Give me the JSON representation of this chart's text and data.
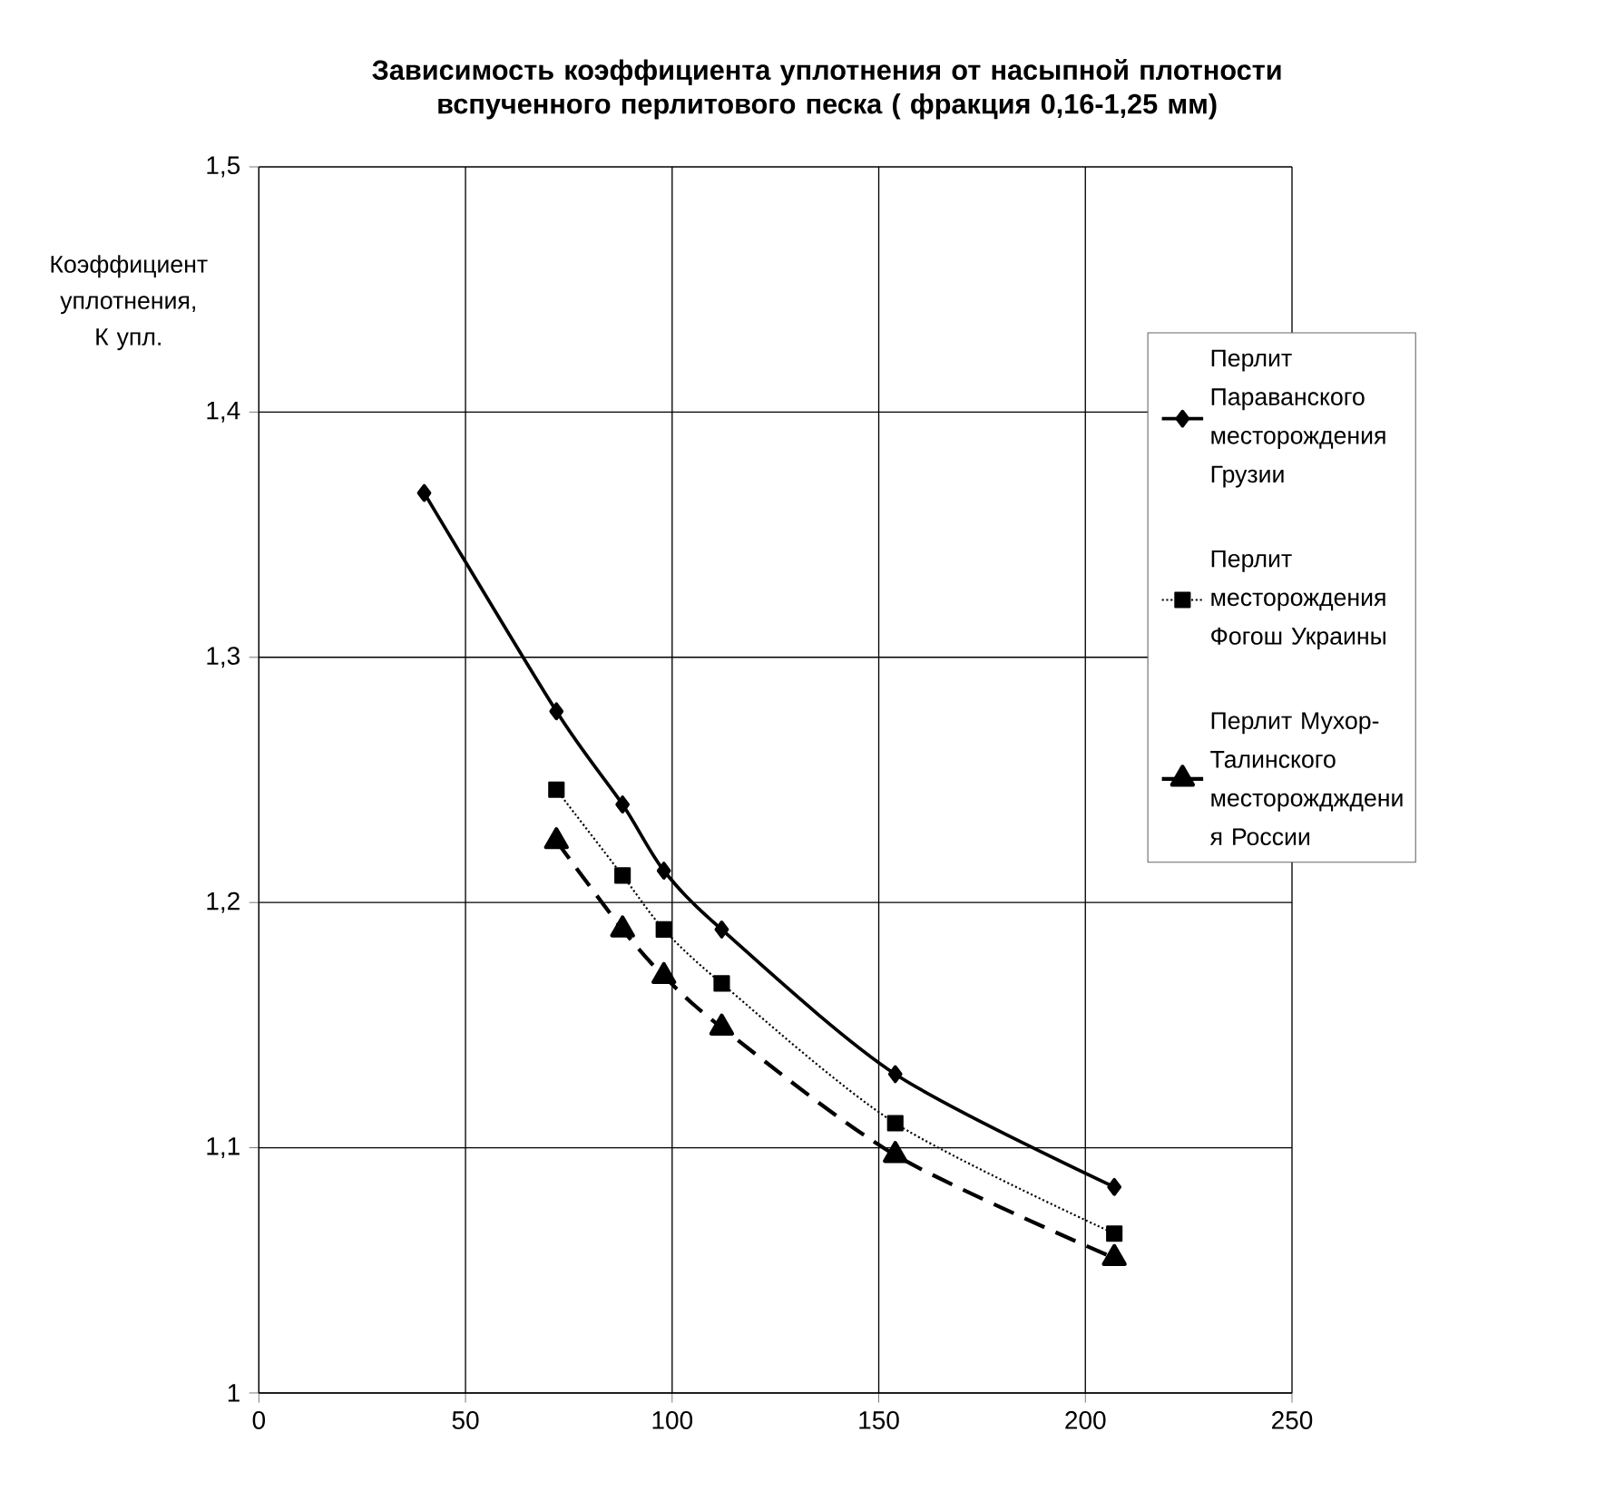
{
  "chart_data": {
    "type": "line",
    "title": "Зависимость коэффициента уплотнения от насыпной плотности вспученного перлитового песка ( фракция 0,16-1,25 мм)",
    "ylabel": "Коэффициент уплотнения, К упл.",
    "xlim": [
      0,
      250
    ],
    "xticks": [
      0,
      50,
      100,
      150,
      200,
      250
    ],
    "ylim": [
      1,
      1.5
    ],
    "yticks": [
      1,
      {
        "value": 1.1,
        "label": "1,1"
      },
      {
        "value": 1.2,
        "label": "1,2"
      },
      {
        "value": 1.3,
        "label": "1,3"
      },
      {
        "value": 1.4,
        "label": "1,4"
      },
      {
        "value": 1.5,
        "label": "1,5"
      }
    ],
    "grid": true,
    "legend": "right",
    "series": [
      {
        "name": "Перлит Параванского месторождения Грузии",
        "color": "#000000",
        "marker": "diamond",
        "line_style": "solid",
        "x": [
          40,
          72,
          88,
          98,
          112,
          154,
          207
        ],
        "values": [
          1.367,
          1.278,
          1.24,
          1.213,
          1.189,
          1.13,
          1.084
        ]
      },
      {
        "name": "Перлит месторождения Фогош Украины",
        "color": "#000000",
        "marker": "square",
        "line_style": "dotted",
        "x": [
          72,
          88,
          98,
          112,
          154,
          207
        ],
        "values": [
          1.246,
          1.211,
          1.189,
          1.167,
          1.11,
          1.065
        ]
      },
      {
        "name": "Перлит Мухор-Талинского месторождждени я России",
        "color": "#000000",
        "marker": "triangle",
        "line_style": "dashed",
        "x": [
          72,
          88,
          98,
          112,
          154,
          207
        ],
        "values": [
          1.225,
          1.189,
          1.17,
          1.149,
          1.097,
          1.055
        ]
      }
    ]
  }
}
